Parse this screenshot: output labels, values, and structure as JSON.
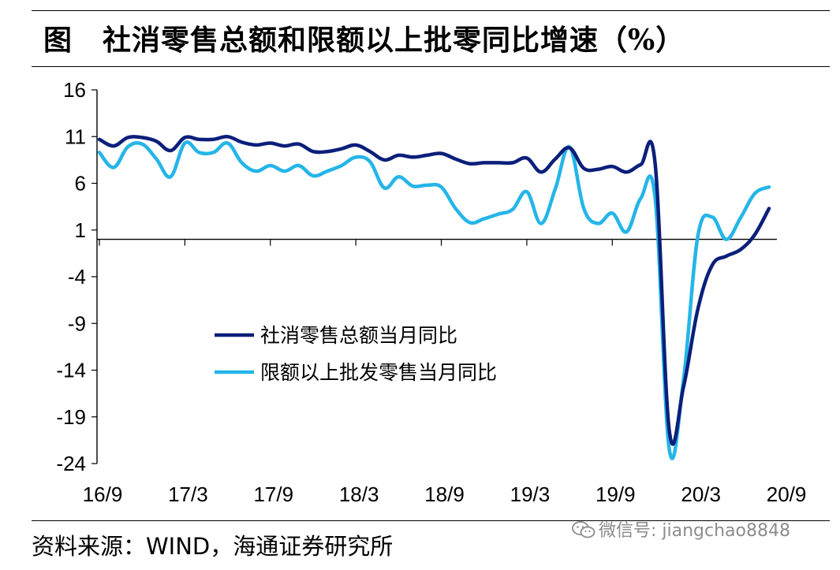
{
  "header": {
    "figure_label": "图",
    "title": "社消零售总额和限额以上批零同比增速（%）"
  },
  "source": {
    "text": "资料来源：WIND，海通证券研究所"
  },
  "watermark": {
    "text": "微信号: jiangchao8848",
    "icon": "wechat-icon"
  },
  "chart_data": {
    "type": "line",
    "title": "社消零售总额和限额以上批零同比增速（%）",
    "x_tick_labels": [
      "16/9",
      "17/3",
      "17/9",
      "18/3",
      "18/9",
      "19/3",
      "19/9",
      "20/3",
      "20/9"
    ],
    "y_tick_labels": [
      "16",
      "11",
      "6",
      "1",
      "-4",
      "-9",
      "-14",
      "-19",
      "-24"
    ],
    "y_ticks": [
      16,
      11,
      6,
      1,
      -4,
      -9,
      -14,
      -19,
      -24
    ],
    "ylim": [
      -24,
      16
    ],
    "x_start": "2016-09",
    "x_end": "2020-09",
    "grid": false,
    "legend_position": "center-left",
    "series": [
      {
        "name": "社消零售总额当月同比",
        "color": "#0b1f7a",
        "values": [
          10.7,
          10.0,
          10.9,
          10.9,
          10.5,
          9.5,
          10.9,
          10.7,
          10.7,
          11.0,
          10.4,
          10.1,
          10.3,
          10.0,
          10.2,
          9.4,
          9.4,
          9.7,
          10.1,
          9.4,
          8.5,
          9.0,
          8.8,
          9.0,
          9.2,
          8.6,
          8.1,
          8.2,
          8.2,
          8.2,
          8.7,
          7.2,
          8.6,
          9.8,
          7.6,
          7.5,
          7.8,
          7.2,
          8.0,
          8.2,
          -20.5,
          -15.8,
          -7.5,
          -2.8,
          -1.8,
          -1.1,
          0.5,
          3.3
        ]
      },
      {
        "name": "限额以上批发零售当月同比",
        "color": "#25b5e8",
        "values": [
          9.3,
          7.7,
          9.9,
          10.2,
          8.6,
          6.7,
          10.3,
          9.3,
          9.3,
          10.3,
          8.2,
          7.3,
          7.9,
          7.3,
          7.9,
          6.8,
          7.3,
          7.9,
          8.8,
          8.3,
          5.5,
          6.7,
          5.7,
          5.8,
          5.6,
          3.3,
          1.8,
          2.2,
          2.7,
          3.2,
          5.1,
          1.7,
          5.4,
          9.9,
          3.3,
          1.7,
          2.8,
          0.8,
          4.4,
          4.5,
          -22.5,
          -15.0,
          0.3,
          2.4,
          0.0,
          2.3,
          4.9,
          5.6
        ]
      }
    ]
  }
}
